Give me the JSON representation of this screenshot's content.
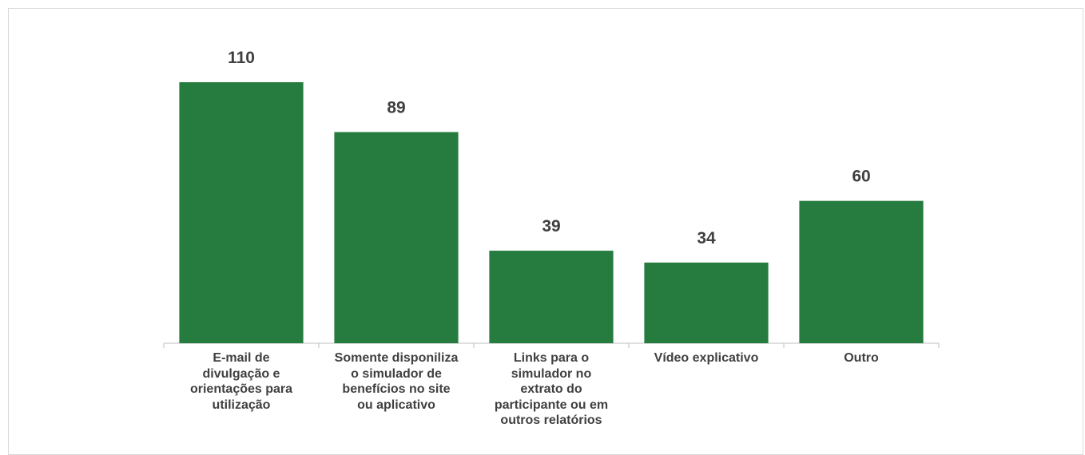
{
  "chart_data": {
    "type": "bar",
    "categories": [
      "E-mail de\ndivulgação e\norientações para\nutilização",
      "Somente disponiliza\no simulador de\nbenefícios no site\nou aplicativo",
      "Links para o\nsimulador no\nextrato do\nparticipante ou em\noutros relatórios",
      "Vídeo explicativo",
      "Outro"
    ],
    "values": [
      110,
      89,
      39,
      34,
      60
    ],
    "color": "#267c3f"
  }
}
